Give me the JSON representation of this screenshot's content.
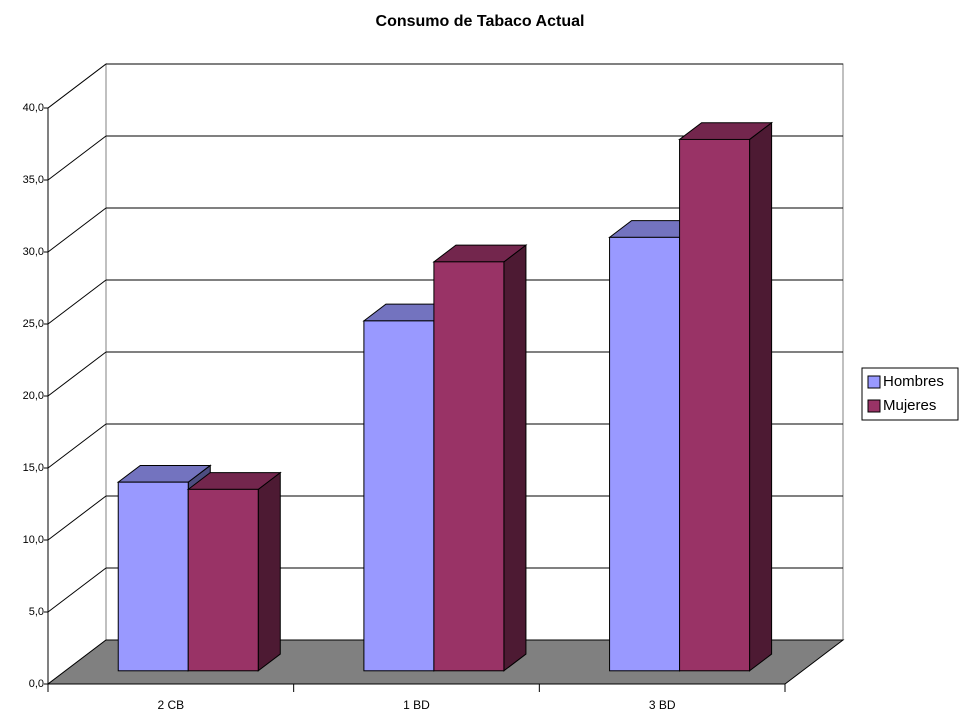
{
  "chart_data": {
    "type": "bar3d",
    "title": "Consumo de Tabaco Actual",
    "categories": [
      "2 CB",
      "1 BD",
      "3 BD"
    ],
    "series": [
      {
        "name": "Hombres",
        "color": "#9999ff",
        "values": [
          13.1,
          24.3,
          30.1
        ]
      },
      {
        "name": "Mujeres",
        "color": "#993366",
        "values": [
          12.6,
          28.4,
          36.9
        ]
      }
    ],
    "ylim": [
      0,
      40
    ],
    "yticks": [
      {
        "value": 0,
        "label": "0,0"
      },
      {
        "value": 5,
        "label": "5,0"
      },
      {
        "value": 10,
        "label": "10,0"
      },
      {
        "value": 15,
        "label": "15,0"
      },
      {
        "value": 20,
        "label": "20,0"
      },
      {
        "value": 25,
        "label": "25,0"
      },
      {
        "value": 30,
        "label": "30,0"
      },
      {
        "value": 35,
        "label": "35,0"
      },
      {
        "value": 40,
        "label": "40,0"
      }
    ],
    "grid": true,
    "legend": "right"
  }
}
